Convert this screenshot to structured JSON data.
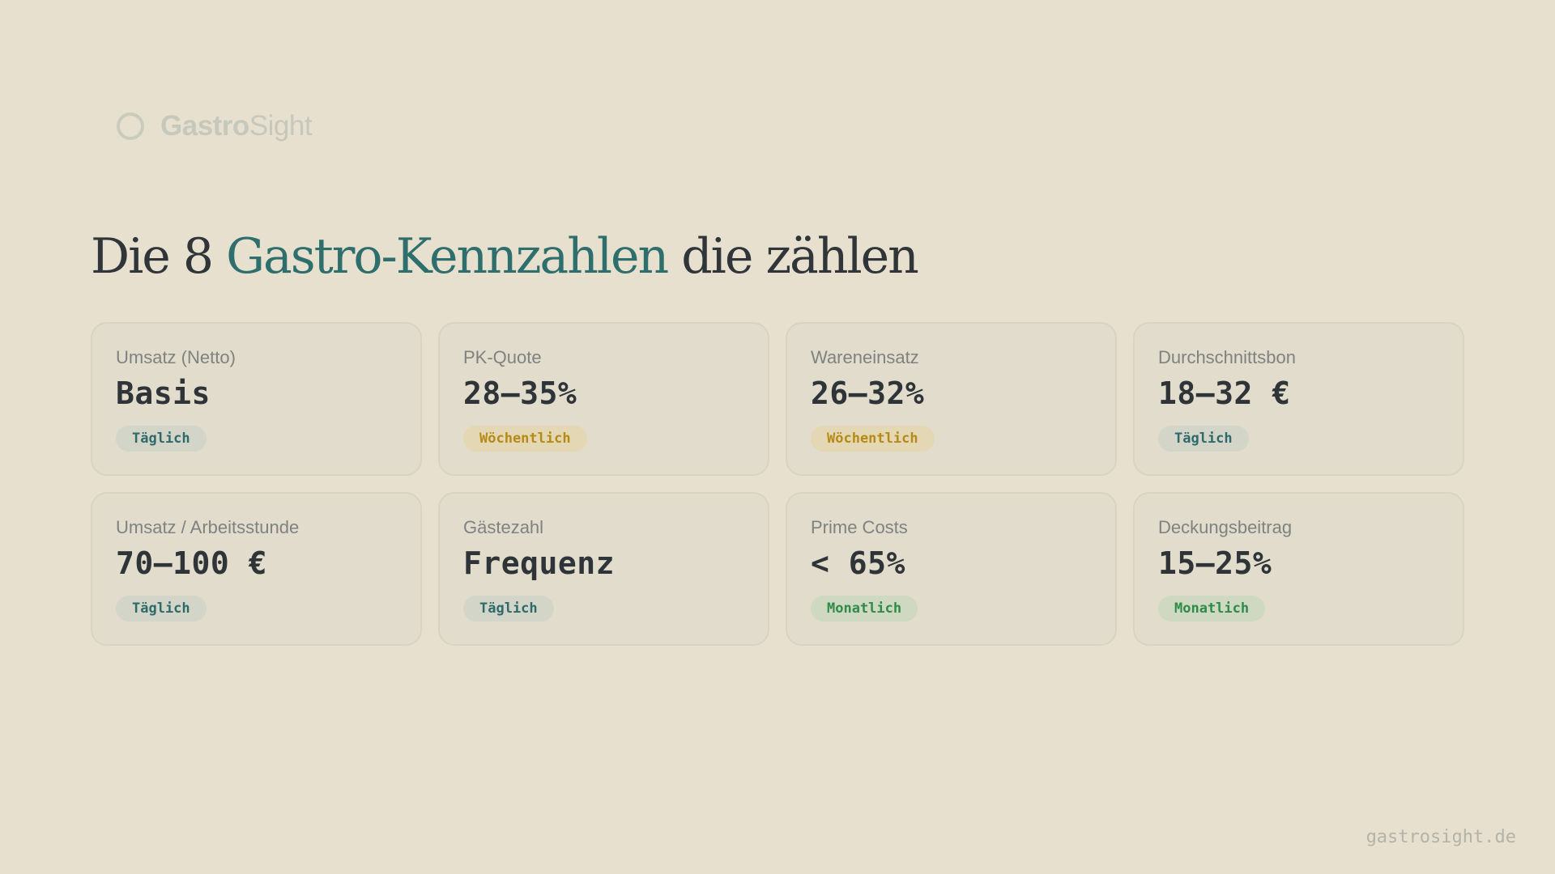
{
  "brand": {
    "name_bold": "Gastro",
    "name_light": "Sight",
    "icon": "ring-icon"
  },
  "headline": {
    "part1": "Die 8 ",
    "accent": "Gastro-Kennzahlen",
    "part2": " die zählen"
  },
  "cards": [
    {
      "label": "Umsatz (Netto)",
      "value": "Basis",
      "badge": "Täglich"
    },
    {
      "label": "PK-Quote",
      "value": "28–35%",
      "badge": "Wöchentlich"
    },
    {
      "label": "Wareneinsatz",
      "value": "26–32%",
      "badge": "Wöchentlich"
    },
    {
      "label": "Durchschnittsbon",
      "value": "18–32 €",
      "badge": "Täglich"
    },
    {
      "label": "Umsatz / Arbeitsstunde",
      "value": "70–100 €",
      "badge": "Täglich"
    },
    {
      "label": "Gästezahl",
      "value": "Frequenz",
      "badge": "Täglich"
    },
    {
      "label": "Prime Costs",
      "value": "< 65%",
      "badge": "Monatlich"
    },
    {
      "label": "Deckungsbeitrag",
      "value": "15–25%",
      "badge": "Monatlich"
    }
  ],
  "footer": {
    "url": "gastrosight.de"
  },
  "colors": {
    "background": "#e7e0cf",
    "accent": "#2e6e6c",
    "badge_daily": "#2f6a6a",
    "badge_weekly": "#b58a16",
    "badge_monthly": "#2f8b48"
  }
}
